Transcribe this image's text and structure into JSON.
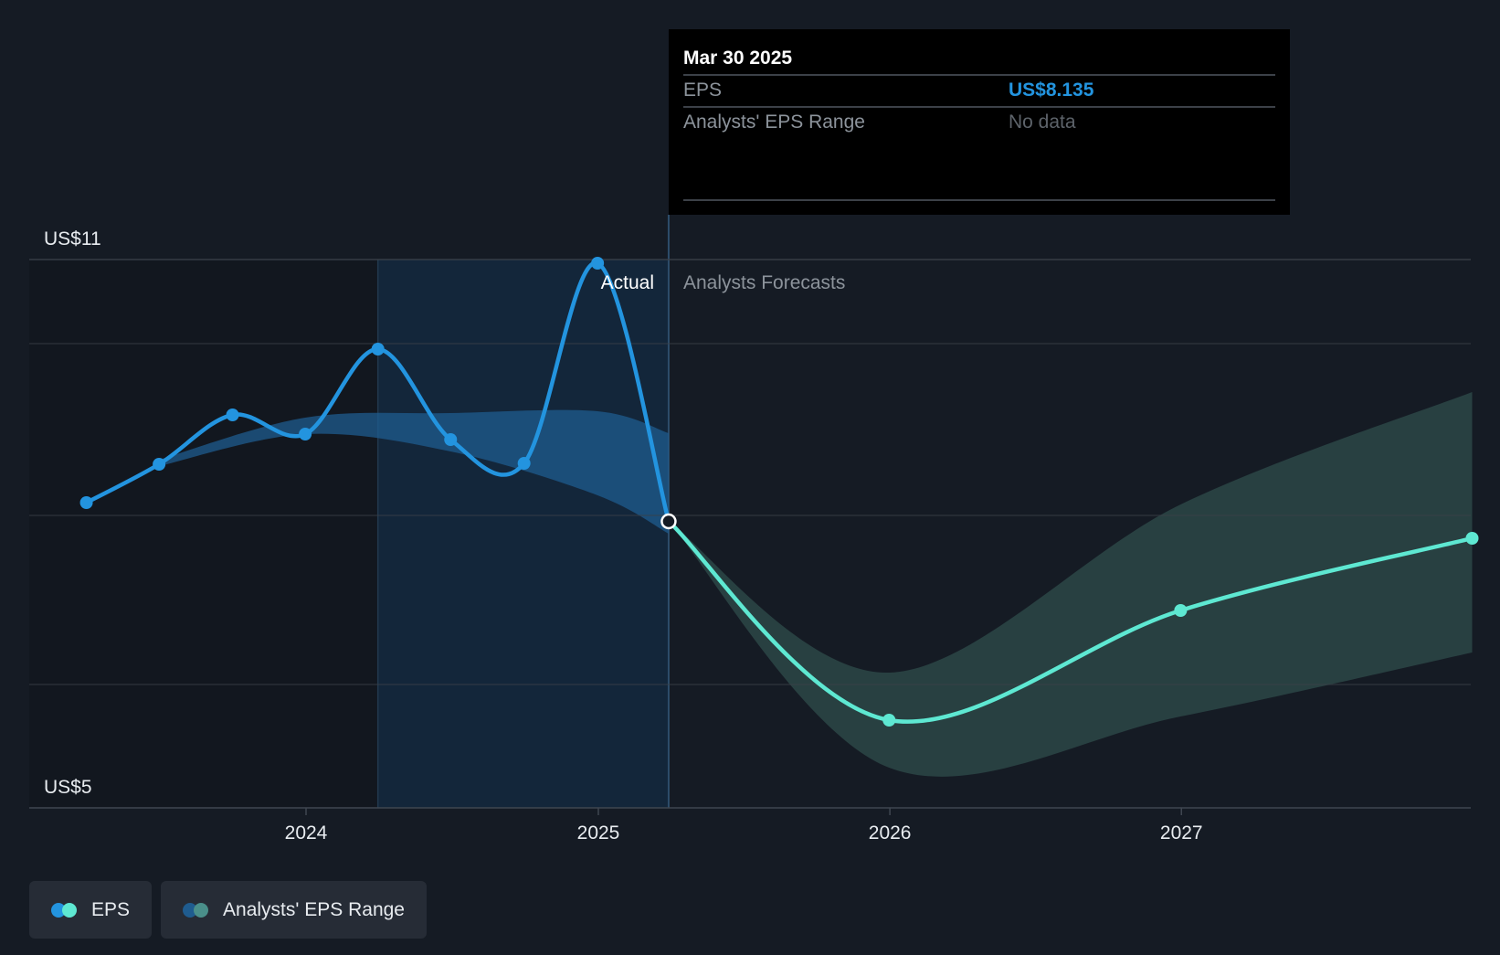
{
  "tooltip": {
    "date": "Mar 30 2025",
    "rows": [
      {
        "label": "EPS",
        "value": "US$8.135"
      },
      {
        "label": "Analysts' EPS Range",
        "value": "No data"
      }
    ]
  },
  "section_labels": {
    "actual": "Actual",
    "forecast": "Analysts Forecasts"
  },
  "legend": {
    "items": [
      {
        "label": "EPS"
      },
      {
        "label": "Analysts' EPS Range"
      }
    ]
  },
  "colors": {
    "background": "#151b24",
    "actual_line": "#2394df",
    "forecast_line": "#5ee8d2",
    "actual_band": "#1f5c8f",
    "forecast_band": "#2c4747",
    "tooltip_value": "#2394df"
  },
  "chart_data": {
    "type": "line",
    "ylabel": "",
    "ylim": [
      5,
      11
    ],
    "y_tick_labels": [
      {
        "value": 11,
        "label": "US$11"
      },
      {
        "value": 5,
        "label": "US$5"
      }
    ],
    "x_tick_labels": [
      "2024",
      "2025",
      "2026",
      "2027"
    ],
    "gridlines": [
      11,
      10.08,
      8.2,
      6.35
    ],
    "grid": true,
    "split_date": "2025-03-30",
    "highlight_start": "2024-03-31",
    "series": [
      {
        "name": "EPS",
        "kind": "actual",
        "points": [
          {
            "x": "2023-04-01",
            "y": 8.34
          },
          {
            "x": "2023-07-01",
            "y": 8.76
          },
          {
            "x": "2023-10-01",
            "y": 9.3
          },
          {
            "x": "2023-12-31",
            "y": 9.09
          },
          {
            "x": "2024-03-31",
            "y": 10.02
          },
          {
            "x": "2024-06-30",
            "y": 9.03
          },
          {
            "x": "2024-09-30",
            "y": 8.77
          },
          {
            "x": "2024-12-31",
            "y": 10.96
          },
          {
            "x": "2025-03-30",
            "y": 8.135
          }
        ]
      },
      {
        "name": "EPS",
        "kind": "forecast",
        "points": [
          {
            "x": "2025-03-30",
            "y": 8.135
          },
          {
            "x": "2025-12-31",
            "y": 5.96
          },
          {
            "x": "2026-12-31",
            "y": 7.16
          },
          {
            "x": "2027-12-31",
            "y": 7.95
          }
        ]
      }
    ],
    "ranges": [
      {
        "name": "Analysts' EPS Range",
        "kind": "actual",
        "x": [
          "2023-07-01",
          "2023-12-31",
          "2024-06-30",
          "2024-12-31",
          "2025-03-30"
        ],
        "upper": [
          8.81,
          9.27,
          9.32,
          9.34,
          9.1
        ],
        "lower": [
          8.74,
          9.09,
          8.9,
          8.42,
          8.0
        ]
      },
      {
        "name": "Analysts' EPS Range",
        "kind": "forecast",
        "x": [
          "2025-03-30",
          "2025-12-31",
          "2026-12-31",
          "2027-12-31"
        ],
        "upper": [
          8.135,
          6.48,
          8.32,
          9.55
        ],
        "lower": [
          8.135,
          5.44,
          6.0,
          6.7
        ]
      }
    ]
  }
}
